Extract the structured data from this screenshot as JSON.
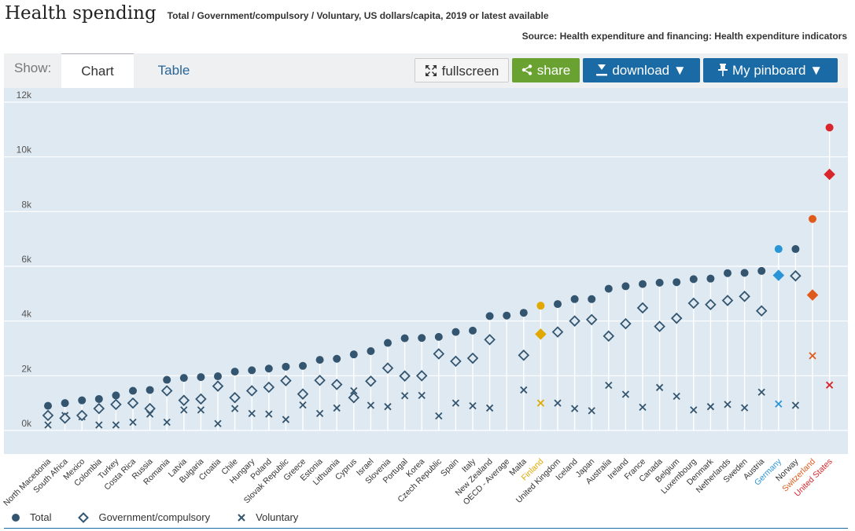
{
  "header": {
    "title": "Health spending",
    "subtitle": "Total / Government/compulsory / Voluntary, US dollars/capita, 2019 or latest available",
    "source": "Source: Health expenditure and financing: Health expenditure indicators"
  },
  "toolbar": {
    "show_label": "Show:",
    "tab_chart": "Chart",
    "tab_table": "Table",
    "fullscreen": "fullscreen",
    "share": "share",
    "download": "download ▼",
    "pinboard": "My pinboard ▼"
  },
  "legend": {
    "total": "Total",
    "government": "Government/compulsory",
    "voluntary": "Voluntary"
  },
  "colors": {
    "default": "#34556f",
    "finland": "#e0a800",
    "germany": "#2a95d6",
    "switzerland": "#e05a1c",
    "united_states": "#d9262c",
    "plot_bg": "#dfe9f1",
    "gridline": "#ffffff"
  },
  "chart_data": {
    "type": "scatter",
    "ylim": [
      0,
      12000
    ],
    "yticks": [
      0,
      2000,
      4000,
      6000,
      8000,
      10000,
      12000
    ],
    "ytick_labels": [
      "0k",
      "2k",
      "4k",
      "6k",
      "8k",
      "10k",
      "12k"
    ],
    "grid": true,
    "legend_position": "bottom-left",
    "categories": [
      "North Macedonia",
      "South Africa",
      "Mexico",
      "Colombia",
      "Turkey",
      "Costa Rica",
      "Russia",
      "Romania",
      "Latvia",
      "Bulgaria",
      "Croatia",
      "Chile",
      "Hungary",
      "Poland",
      "Slovak Republic",
      "Greece",
      "Estonia",
      "Lithuania",
      "Cyprus",
      "Israel",
      "Slovenia",
      "Portugal",
      "Korea",
      "Czech Republic",
      "Spain",
      "Italy",
      "New Zealand",
      "OECD - Average",
      "Malta",
      "Finland",
      "United Kingdom",
      "Iceland",
      "Japan",
      "Australia",
      "Ireland",
      "France",
      "Canada",
      "Belgium",
      "Luxembourg",
      "Denmark",
      "Netherlands",
      "Sweden",
      "Austria",
      "Germany",
      "Norway",
      "Switzerland",
      "United States"
    ],
    "highlight": {
      "Finland": "finland",
      "Germany": "germany",
      "Switzerland": "switzerland",
      "United States": "united_states"
    },
    "series": [
      {
        "name": "Total",
        "marker": "circle",
        "values": [
          900,
          1000,
          1100,
          1150,
          1280,
          1450,
          1480,
          1850,
          1920,
          1950,
          1980,
          2150,
          2200,
          2260,
          2330,
          2360,
          2580,
          2620,
          2780,
          2900,
          3200,
          3370,
          3380,
          3420,
          3600,
          3650,
          4180,
          4200,
          4300,
          4560,
          4620,
          4800,
          4800,
          5180,
          5270,
          5350,
          5400,
          5420,
          5530,
          5550,
          5750,
          5760,
          5830,
          6630,
          6630,
          7730,
          11070
        ]
      },
      {
        "name": "Government/compulsory",
        "marker": "diamond",
        "values": [
          550,
          450,
          550,
          800,
          950,
          1000,
          800,
          1450,
          1100,
          1150,
          1620,
          1200,
          1450,
          1580,
          1820,
          1330,
          1830,
          1680,
          1200,
          1800,
          2280,
          1990,
          2000,
          2800,
          2530,
          2640,
          3320,
          null,
          2750,
          3520,
          3600,
          4000,
          4050,
          3450,
          3900,
          4480,
          3800,
          4100,
          4650,
          4600,
          4750,
          4900,
          4370,
          5670,
          5650,
          4950,
          9360
        ]
      },
      {
        "name": "Voluntary",
        "marker": "x",
        "values": [
          200,
          550,
          500,
          200,
          200,
          300,
          600,
          300,
          750,
          750,
          250,
          800,
          620,
          600,
          400,
          930,
          620,
          820,
          1450,
          920,
          870,
          1270,
          1280,
          530,
          1000,
          900,
          820,
          null,
          1480,
          1000,
          1000,
          800,
          720,
          1650,
          1320,
          850,
          1570,
          1250,
          750,
          870,
          950,
          830,
          1400,
          970,
          920,
          2730,
          1660
        ]
      }
    ]
  }
}
